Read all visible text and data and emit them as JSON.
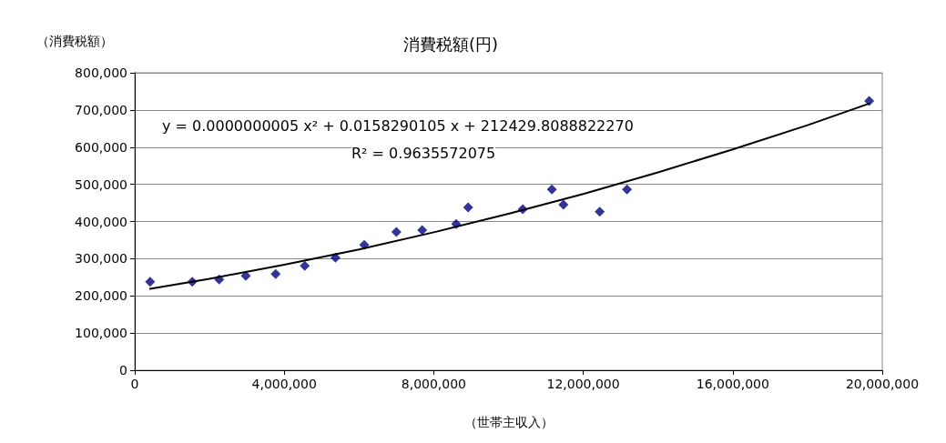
{
  "chart_data": {
    "type": "scatter",
    "title": "消費税額(円)",
    "xlabel": "（世帯主収入）",
    "ylabel": "（消費税額）",
    "annotations": [
      "y = 0.0000000005 x² + 0.0158290105 x + 212429.8088822270",
      "R² = 0.9635572075"
    ],
    "series": [
      {
        "color": "#000080",
        "marker": "diamond",
        "x": [
          410000,
          1540000,
          2260000,
          2970000,
          3770000,
          4550000,
          5370000,
          6140000,
          7000000,
          7690000,
          8600000,
          8920000,
          10380000,
          11160000,
          11470000,
          12440000,
          13170000,
          19650000
        ],
        "values": [
          238000,
          238000,
          244000,
          254000,
          259000,
          281000,
          303000,
          337000,
          372000,
          377000,
          393000,
          438000,
          433000,
          486000,
          445000,
          426000,
          486000,
          724000
        ]
      },
      {
        "type": "line",
        "color": "#000000",
        "marker": "none",
        "line_style": "solid",
        "x": [
          410000,
          2000000,
          4000000,
          6000000,
          8000000,
          10000000,
          12000000,
          14000000,
          16000000,
          18000000,
          19650000
        ],
        "values": [
          219000,
          246000,
          284000,
          325000,
          371000,
          421000,
          474000,
          532000,
          594000,
          659000,
          717000
        ]
      }
    ],
    "xlim": [
      0,
      20000000
    ],
    "xticks": [
      0,
      {
        "value": 4000000,
        "label": "4,000,000"
      },
      {
        "value": 8000000,
        "label": "8,000,000"
      },
      {
        "value": 12000000,
        "label": "12,000,000"
      },
      {
        "value": 16000000,
        "label": "16,000,000"
      },
      {
        "value": 20000000,
        "label": "20,000,000"
      }
    ],
    "ylim": [
      0,
      800000
    ],
    "yticks": [
      0,
      {
        "value": 100000,
        "label": "100,000"
      },
      {
        "value": 200000,
        "label": "200,000"
      },
      {
        "value": 300000,
        "label": "300,000"
      },
      {
        "value": 400000,
        "label": "400,000"
      },
      {
        "value": 500000,
        "label": "500,000"
      },
      {
        "value": 600000,
        "label": "600,000"
      },
      {
        "value": 700000,
        "label": "700,000"
      },
      {
        "value": 800000,
        "label": "800,000"
      }
    ],
    "grid": "y"
  }
}
